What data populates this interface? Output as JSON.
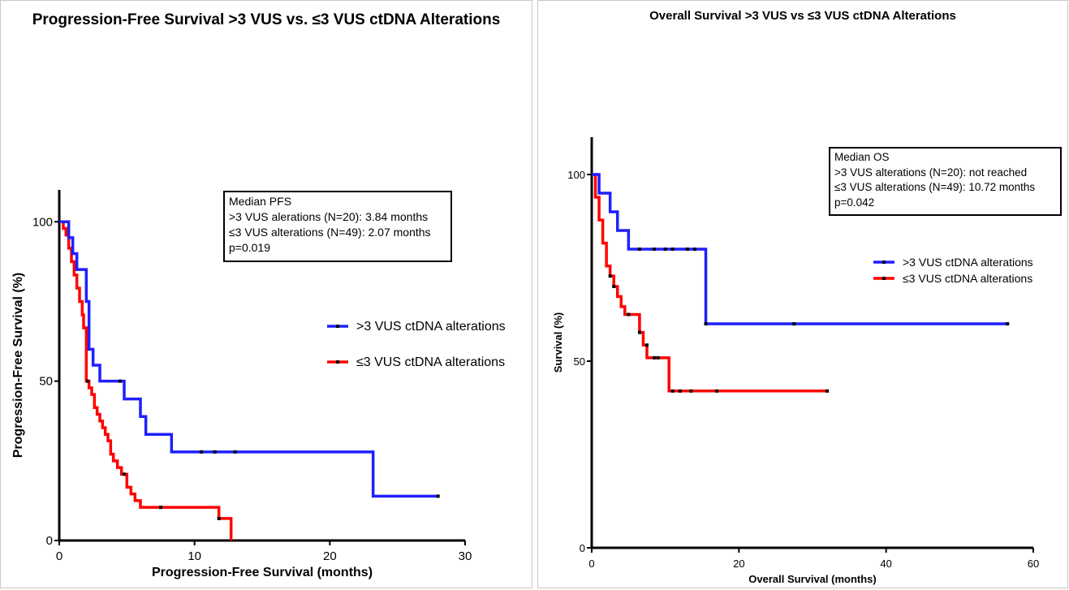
{
  "charts": {
    "pfs": {
      "title": "Progression-Free Survival >3 VUS vs. ≤3 VUS ctDNA Alterations",
      "xlabel": "Progression-Free Survival (months)",
      "ylabel": "Progression-Free Survival (%)",
      "xticks": [
        "0",
        "10",
        "20",
        "30"
      ],
      "yticks": [
        "0",
        "50",
        "100"
      ],
      "legend": ">3 VUS ctDNA alterations|≤3 VUS ctDNA alterations",
      "box": {
        "line1": "Median PFS",
        "line2": ">3 VUS alerations (N=20): 3.84 months",
        "line3": "≤3 VUS alterations (N=49): 2.07 months",
        "line4": "p=0.019"
      }
    },
    "os": {
      "title": "Overall Survival >3 VUS vs ≤3 VUS ctDNA Alterations",
      "xlabel": "Overall Survival (months)",
      "ylabel": "Survival (%)",
      "xticks": [
        "0",
        "20",
        "40",
        "60"
      ],
      "yticks": [
        "0",
        "50",
        "100"
      ],
      "legend": ">3 VUS ctDNA alterations|≤3 VUS ctDNA alterations",
      "box": {
        "line1": "Median OS",
        "line2": ">3 VUS alterations (N=20): not reached",
        "line3": "≤3 VUS alterations (N=49): 10.72 months",
        "line4": "p=0.042"
      }
    }
  },
  "chart_data": [
    {
      "type": "line",
      "title": "Progression-Free Survival >3 VUS vs. ≤3 VUS ctDNA Alterations",
      "xlabel": "Progression-Free Survival (months)",
      "ylabel": "Progression-Free Survival (%)",
      "xlim": [
        0,
        30
      ],
      "ylim": [
        0,
        110
      ],
      "xticks": [
        0,
        10,
        20,
        30
      ],
      "yticks": [
        0,
        50,
        100
      ],
      "legend_position": "right",
      "series": [
        {
          "name": ">3 VUS ctDNA alterations",
          "color": "#1f1fff",
          "x": [
            0,
            0.7,
            1.0,
            1.3,
            2.0,
            2.2,
            2.5,
            3.0,
            4.5,
            4.8,
            6.0,
            6.4,
            8.3,
            10.5,
            11.5,
            13.0,
            23.2,
            28.0
          ],
          "y": [
            100,
            95,
            90,
            85,
            75,
            60,
            55,
            50,
            50,
            44.4,
            38.9,
            33.3,
            27.8,
            27.8,
            27.8,
            27.8,
            13.9,
            13.9
          ],
          "censored_x": [
            4.5,
            10.5,
            11.5,
            13.0,
            28.0
          ],
          "censored_y": [
            50,
            27.8,
            27.8,
            27.8,
            13.9
          ]
        },
        {
          "name": "≤3 VUS ctDNA alterations",
          "color": "#ff0000",
          "x": [
            0,
            0.3,
            0.5,
            0.7,
            0.9,
            1.1,
            1.3,
            1.5,
            1.7,
            1.8,
            2.0,
            2.2,
            2.4,
            2.6,
            2.8,
            3.0,
            3.2,
            3.4,
            3.6,
            3.8,
            4.0,
            4.3,
            4.6,
            5.0,
            5.3,
            5.6,
            6.0,
            7.5,
            10.0,
            11.8,
            12.7
          ],
          "y": [
            100,
            97.9,
            95.8,
            91.7,
            87.5,
            83.3,
            79.2,
            75,
            70.8,
            66.7,
            50,
            47.9,
            45.8,
            41.7,
            39.6,
            37.5,
            35.4,
            33.3,
            31.3,
            27.1,
            25,
            22.9,
            20.8,
            16.7,
            14.6,
            12.5,
            10.4,
            10.4,
            10.4,
            6.9,
            0
          ],
          "censored_x": [
            2.1,
            4.8,
            7.5,
            11.8
          ],
          "censored_y": [
            50,
            20.8,
            10.4,
            6.9
          ]
        }
      ]
    },
    {
      "type": "line",
      "title": "Overall Survival >3 VUS vs ≤3 VUS ctDNA Alterations",
      "xlabel": "Overall Survival (months)",
      "ylabel": "Survival (%)",
      "xlim": [
        0,
        60
      ],
      "ylim": [
        0,
        110
      ],
      "xticks": [
        0,
        20,
        40,
        60
      ],
      "yticks": [
        0,
        50,
        100
      ],
      "legend_position": "right",
      "series": [
        {
          "name": ">3 VUS ctDNA alterations",
          "color": "#1f1fff",
          "x": [
            0,
            1.0,
            2.5,
            3.5,
            5.0,
            6.5,
            8.5,
            10.0,
            11.0,
            13.0,
            14.0,
            15.5,
            27.5,
            56.5
          ],
          "y": [
            100,
            95,
            90,
            85,
            80,
            80,
            80,
            80,
            80,
            80,
            80,
            60,
            60,
            60
          ],
          "censored_x": [
            6.5,
            8.5,
            10.0,
            11.0,
            13.0,
            14.0,
            15.5,
            27.5,
            56.5
          ],
          "censored_y": [
            80,
            80,
            80,
            80,
            80,
            80,
            60,
            60,
            60
          ]
        },
        {
          "name": "≤3 VUS ctDNA alterations",
          "color": "#ff0000",
          "x": [
            0,
            0.5,
            1.0,
            1.5,
            2.0,
            2.5,
            3.0,
            3.5,
            4.0,
            4.5,
            5.0,
            6.5,
            7.0,
            7.5,
            8.0,
            9.0,
            10.5,
            11.0,
            12.0,
            13.5,
            17.0,
            32.0
          ],
          "y": [
            100,
            93.9,
            87.8,
            81.6,
            75.5,
            72.8,
            70,
            67.3,
            64.6,
            62.5,
            62.5,
            57.7,
            54.3,
            50.9,
            50.9,
            50.9,
            42,
            42,
            42,
            42,
            42,
            42
          ],
          "censored_x": [
            2.5,
            3.0,
            5.0,
            6.5,
            7.5,
            8.5,
            9.0,
            11.0,
            12.0,
            13.5,
            17.0,
            32.0
          ],
          "censored_y": [
            72.8,
            70,
            62.5,
            57.7,
            54.3,
            50.9,
            50.9,
            42,
            42,
            42,
            42,
            42
          ]
        }
      ]
    }
  ]
}
